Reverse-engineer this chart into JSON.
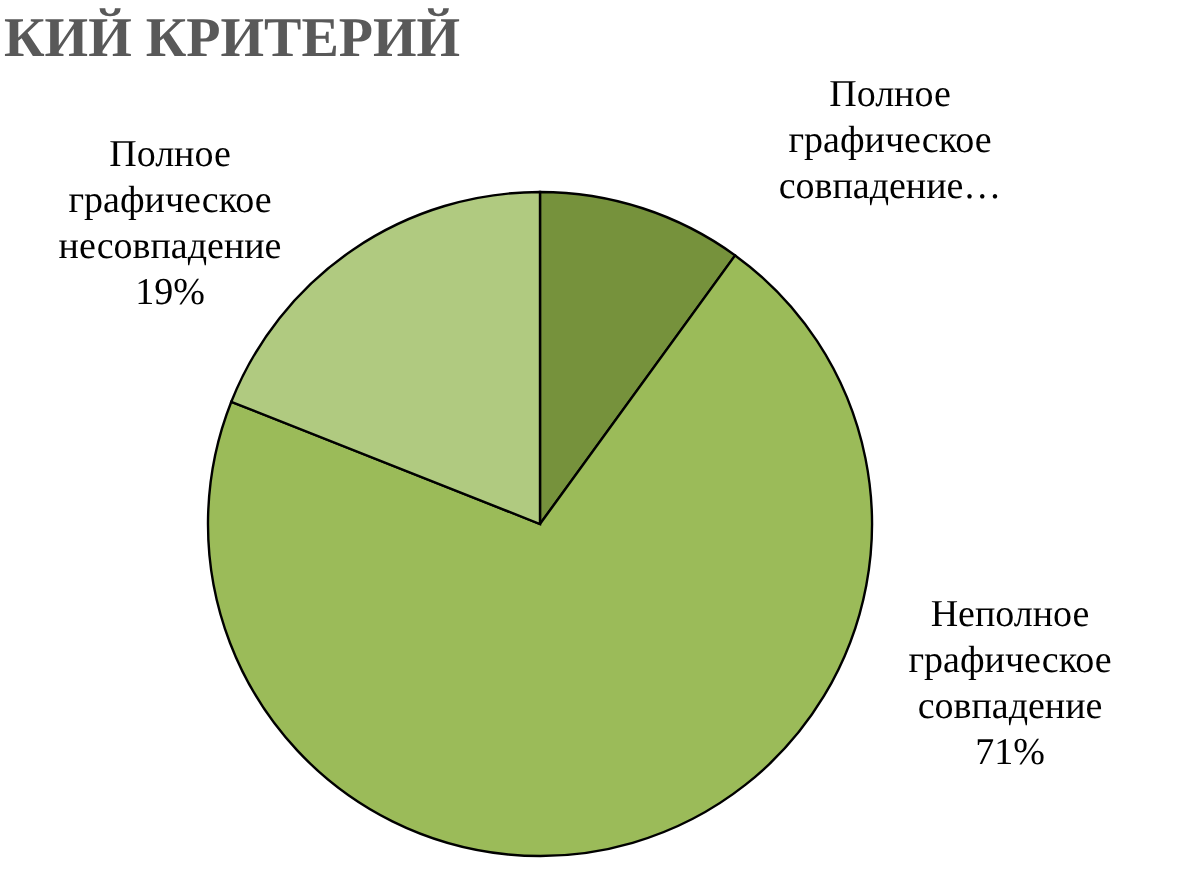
{
  "chart_data": {
    "type": "pie",
    "title": "КИЙ КРИТЕРИЙ",
    "categories": [
      "Полное графическое совпадение…",
      "Неполное графическое совпадение",
      "Полное графическое несовпадение"
    ],
    "values": [
      10,
      71,
      19
    ],
    "value_labels": [
      null,
      "71%",
      "19%"
    ],
    "colors": [
      "#76923c",
      "#9bbb59",
      "#b0ca80"
    ],
    "legend": false
  }
}
